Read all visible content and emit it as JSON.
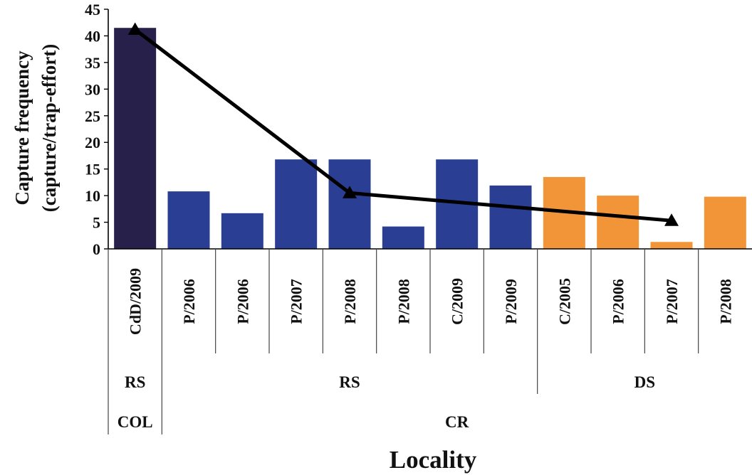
{
  "chart_data": {
    "type": "bar",
    "ylabel_line1": "Capture frequency",
    "ylabel_line2": "(capture/trap-effort)",
    "xlabel": "Locality",
    "ylim": [
      0,
      45
    ],
    "yticks": [
      0,
      5,
      10,
      15,
      20,
      25,
      30,
      35,
      40,
      45
    ],
    "categories": [
      "CdD/2009",
      "P/2006",
      "P/2006",
      "P/2007",
      "P/2008",
      "P/2008",
      "C/2009",
      "P/2009",
      "C/2005",
      "P/2006",
      "P/2007",
      "P/2008"
    ],
    "values": [
      41.5,
      10.8,
      6.7,
      16.8,
      16.8,
      4.2,
      16.8,
      11.9,
      13.5,
      10.0,
      1.3,
      9.8
    ],
    "bar_colors": [
      "#26204a",
      "#2a3f93",
      "#2a3f93",
      "#2a3f93",
      "#2a3f93",
      "#2a3f93",
      "#2a3f93",
      "#2a3f93",
      "#f29538",
      "#f29538",
      "#f29538",
      "#f29538"
    ],
    "line": {
      "points": [
        {
          "category_index": 0,
          "y": 41.2
        },
        {
          "category_index": 4,
          "y": 10.5
        },
        {
          "category_index": 10,
          "y": 5.3
        }
      ],
      "marker": "triangle",
      "color": "#000000"
    },
    "group_rows": [
      [
        {
          "label": "RS",
          "start": 0,
          "end": 0
        },
        {
          "label": "RS",
          "start": 1,
          "end": 7
        },
        {
          "label": "DS",
          "start": 8,
          "end": 11
        }
      ],
      [
        {
          "label": "COL",
          "start": 0,
          "end": 0
        },
        {
          "label": "CR",
          "start": 1,
          "end": 11
        }
      ]
    ]
  }
}
